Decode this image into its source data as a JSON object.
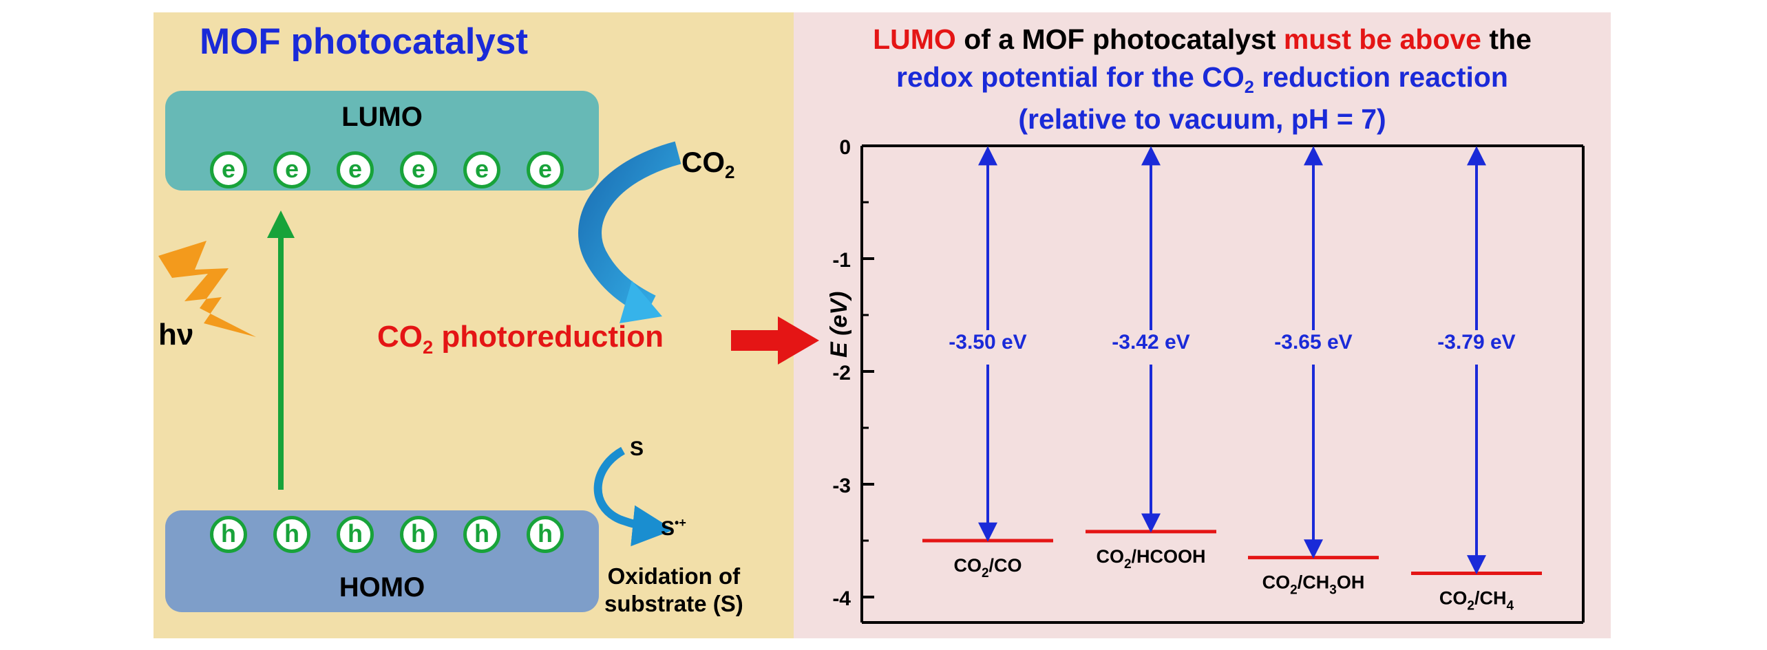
{
  "left": {
    "title": "MOF photocatalyst",
    "lumo_label": "LUMO",
    "homo_label": "HOMO",
    "electron_symbol": "e",
    "hole_symbol": "h",
    "light_label": "hν",
    "co2": "CO",
    "co2_sub": "2",
    "photoreduction_prefix": "CO",
    "photoreduction_sub": "2",
    "photoreduction_suffix": " photoreduction",
    "s_label": "S",
    "s_oxidized": "S",
    "s_oxidized_sup": "•+",
    "oxidation_line1": "Oxidation of",
    "oxidation_line2": "substrate (S)"
  },
  "right": {
    "title_part1": "LUMO",
    "title_part2": " of a MOF photocatalyst ",
    "title_part3": "must be above",
    "title_part4": " the",
    "title_line2_a": "redox potential for the CO",
    "title_line2_sub": "2",
    "title_line2_b": " reduction reaction",
    "title_line3": "(relative to vacuum, pH = 7)"
  },
  "chart_data": {
    "type": "energy-level",
    "ylabel": "E (eV)",
    "ylim": [
      -4.2,
      0
    ],
    "yticks": [
      0,
      -1,
      -2,
      -3,
      -4
    ],
    "levels": [
      {
        "label": "CO2/CO",
        "label_main": "CO",
        "label_sub": "2",
        "label_rest": "/CO",
        "value": -3.5,
        "annotation": "-3.50 eV"
      },
      {
        "label": "CO2/HCOOH",
        "label_main": "CO",
        "label_sub": "2",
        "label_rest": "/HCOOH",
        "value": -3.42,
        "annotation": "-3.42 eV"
      },
      {
        "label": "CO2/CH3OH",
        "label_main": "CO",
        "label_sub": "2",
        "label_rest": "/CH",
        "label_sub2": "3",
        "label_rest2": "OH",
        "value": -3.65,
        "annotation": "-3.65 eV"
      },
      {
        "label": "CO2/CH4",
        "label_main": "CO",
        "label_sub": "2",
        "label_rest": "/CH",
        "label_sub2": "4",
        "label_rest2": "",
        "value": -3.79,
        "annotation": "-3.79 eV"
      }
    ]
  },
  "colors": {
    "left_bg": "#f2dfa9",
    "right_bg": "#f3dfdf",
    "title_blue": "#1a2ad8",
    "accent_red": "#e41515",
    "lumo_band": "#67b9b6",
    "homo_band": "#7e9ec9",
    "carrier_green": "#18a33a",
    "arrow_blue": "#1a2ad8",
    "level_red": "#e41515",
    "curve_blue": "#1a8ed0",
    "lightning_orange": "#f39a1c"
  }
}
